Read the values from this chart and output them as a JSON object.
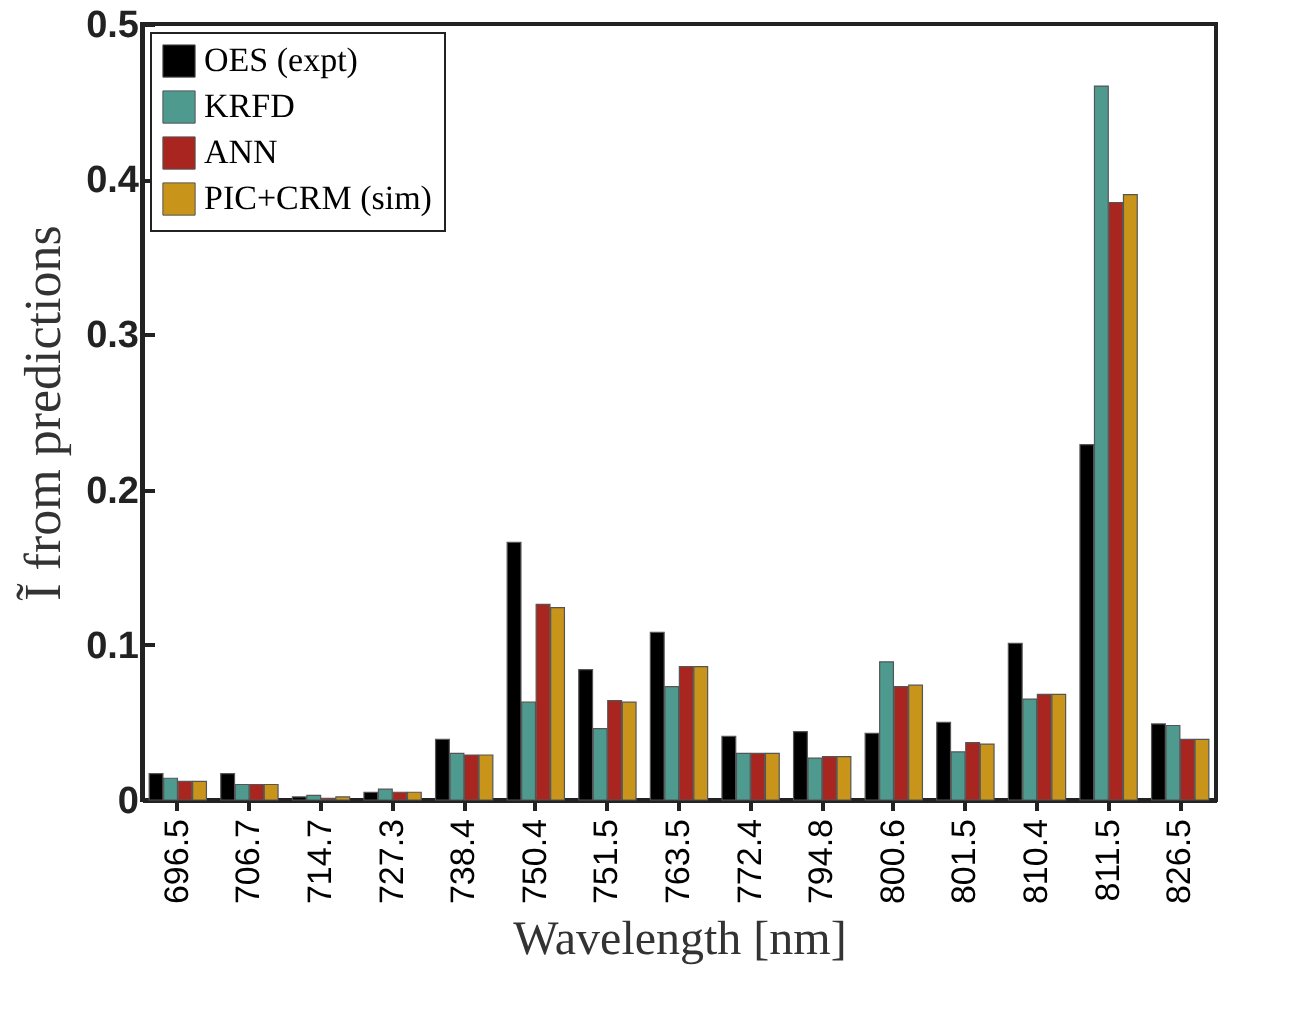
{
  "chart_data": {
    "type": "bar",
    "xlabel": "Wavelength [nm]",
    "ylabel": "Ĩ from predictions",
    "categories": [
      "696.5",
      "706.7",
      "714.7",
      "727.3",
      "738.4",
      "750.4",
      "751.5",
      "763.5",
      "772.4",
      "794.8",
      "800.6",
      "801.5",
      "810.4",
      "811.5",
      "826.5"
    ],
    "series": [
      {
        "name": "OES (expt)",
        "color": "#000000",
        "values": [
          0.017,
          0.017,
          0.002,
          0.005,
          0.039,
          0.166,
          0.084,
          0.108,
          0.041,
          0.044,
          0.043,
          0.05,
          0.101,
          0.229,
          0.049
        ]
      },
      {
        "name": "KRFD",
        "color": "#4e9a8f",
        "values": [
          0.014,
          0.01,
          0.003,
          0.007,
          0.03,
          0.063,
          0.046,
          0.073,
          0.03,
          0.027,
          0.089,
          0.031,
          0.065,
          0.46,
          0.048
        ]
      },
      {
        "name": "ANN",
        "color": "#a8261f",
        "values": [
          0.012,
          0.01,
          0.001,
          0.005,
          0.029,
          0.126,
          0.064,
          0.086,
          0.03,
          0.028,
          0.073,
          0.037,
          0.068,
          0.385,
          0.039
        ]
      },
      {
        "name": "PIC+CRM (sim)",
        "color": "#c8941a",
        "values": [
          0.012,
          0.01,
          0.002,
          0.005,
          0.029,
          0.124,
          0.063,
          0.086,
          0.03,
          0.028,
          0.074,
          0.036,
          0.068,
          0.39,
          0.039
        ]
      }
    ],
    "ylim": [
      0,
      0.5
    ],
    "yticks": [
      0,
      0.1,
      0.2,
      0.3,
      0.4,
      0.5
    ],
    "grid": false,
    "legend": "top left"
  }
}
